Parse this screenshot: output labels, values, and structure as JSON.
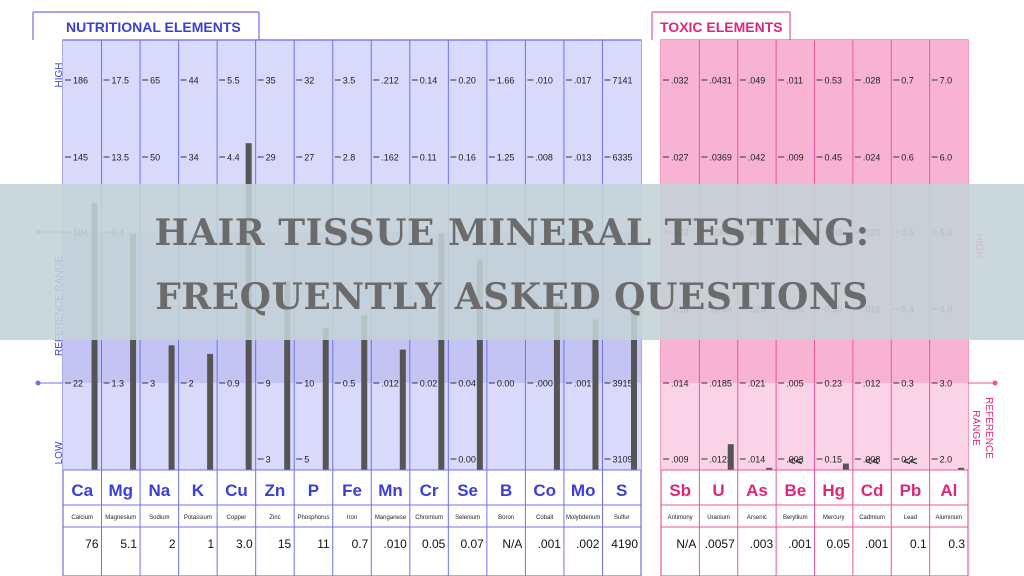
{
  "sections": {
    "nutritional": "NUTRITIONAL ELEMENTS",
    "toxic": "TOXIC ELEMENTS"
  },
  "side_labels": {
    "high": "HIGH",
    "low": "LOW",
    "reference_range": "REFERENCE RANGE",
    "toxic_high": "HIGH",
    "toxic_reference": "REFERENCE",
    "toxic_range": "RANGE"
  },
  "banner": {
    "line1": "HAIR TISSUE MINERAL TESTING:",
    "line2": "FREQUENTLY ASKED QUESTIONS"
  },
  "colors": {
    "nutritional_fill": "#d9d9fb",
    "nutritional_reference": "#c4c4f4",
    "nutritional_border": "#6f72e8",
    "nutritional_text": "#3a3fd6",
    "toxic_fill": "#fbd3e6",
    "toxic_high": "#f7b3d1",
    "toxic_border": "#e8579a",
    "toxic_text": "#e0267a",
    "bar": "#555555",
    "banner": "#c4d3d6",
    "banner_text": "#6b6b6b"
  },
  "chart_data": {
    "type": "bar",
    "nutritional": [
      {
        "symbol": "Ca",
        "name": "Calcium",
        "result": "76",
        "scale": [
          "186",
          "145",
          "104",
          "",
          "22",
          ""
        ],
        "bar": 0.62
      },
      {
        "symbol": "Mg",
        "name": "Magnesium",
        "result": "5.1",
        "scale": [
          "17.5",
          "13.5",
          "9.4",
          "",
          "1.3",
          ""
        ],
        "bar": 0.55
      },
      {
        "symbol": "Na",
        "name": "Sodium",
        "result": "2",
        "scale": [
          "65",
          "50",
          "",
          "",
          "3",
          ""
        ],
        "bar": 0.29
      },
      {
        "symbol": "K",
        "name": "Potassium",
        "result": "1",
        "scale": [
          "44",
          "34",
          "",
          "",
          "2",
          ""
        ],
        "bar": 0.27
      },
      {
        "symbol": "Cu",
        "name": "Copper",
        "result": "3.0",
        "scale": [
          "5.5",
          "4.4",
          "",
          "",
          "0.9",
          ""
        ],
        "bar": 0.76
      },
      {
        "symbol": "Zn",
        "name": "Zinc",
        "result": "15",
        "scale": [
          "35",
          "29",
          "",
          "",
          "9",
          "3"
        ],
        "bar": 0.44
      },
      {
        "symbol": "P",
        "name": "Phosphorus",
        "result": "11",
        "scale": [
          "32",
          "27",
          "",
          "",
          "10",
          "5"
        ],
        "bar": 0.33
      },
      {
        "symbol": "Fe",
        "name": "Iron",
        "result": "0.7",
        "scale": [
          "3.5",
          "2.8",
          "",
          "",
          "0.5",
          ""
        ],
        "bar": 0.36
      },
      {
        "symbol": "Mn",
        "name": "Manganese",
        "result": ".010",
        "scale": [
          ".212",
          ".162",
          "",
          "",
          ".012",
          ""
        ],
        "bar": 0.28
      },
      {
        "symbol": "Cr",
        "name": "Chromium",
        "result": "0.05",
        "scale": [
          "0.14",
          "0.11",
          "",
          "",
          "0.02",
          ""
        ],
        "bar": 0.55
      },
      {
        "symbol": "Se",
        "name": "Selenium",
        "result": "0.07",
        "scale": [
          "0.20",
          "0.16",
          "",
          "",
          "0.04",
          "0.00"
        ],
        "bar": 0.49
      },
      {
        "symbol": "B",
        "name": "Boron",
        "result": "N/A",
        "scale": [
          "1.66",
          "1.25",
          "",
          "",
          "0.00",
          ""
        ],
        "bar": 0
      },
      {
        "symbol": "Co",
        "name": "Cobalt",
        "result": ".001",
        "scale": [
          ".010",
          ".008",
          "",
          "",
          ".000",
          ""
        ],
        "bar": 0.39
      },
      {
        "symbol": "Mo",
        "name": "Molybdenum",
        "result": ".002",
        "scale": [
          ".017",
          ".013",
          "",
          "",
          ".001",
          ""
        ],
        "bar": 0.35
      },
      {
        "symbol": "S",
        "name": "Sulfur",
        "result": "4190",
        "scale": [
          "7141",
          "6335",
          "",
          "",
          "3915",
          "3109"
        ],
        "bar": 0.38
      }
    ],
    "toxic": [
      {
        "symbol": "Sb",
        "name": "Antimony",
        "result": "N/A",
        "scale": [
          ".032",
          ".027",
          ".023",
          ".018",
          ".014",
          ".009"
        ],
        "bar": 0,
        "marker": ""
      },
      {
        "symbol": "U",
        "name": "Uranium",
        "result": ".0057",
        "scale": [
          ".0431",
          ".0369",
          ".0308",
          ".0246",
          ".0185",
          ".0123"
        ],
        "bar": 0.06,
        "marker": ""
      },
      {
        "symbol": "As",
        "name": "Arsenic",
        "result": ".003",
        "scale": [
          ".049",
          ".042",
          ".035",
          ".028",
          ".021",
          ".014"
        ],
        "bar": 0.005,
        "marker": ""
      },
      {
        "symbol": "Be",
        "name": "Beryllium",
        "result": ".001",
        "scale": [
          ".011",
          ".009",
          ".008",
          ".006",
          ".005",
          ".003"
        ],
        "bar": 0,
        "marker": "<<"
      },
      {
        "symbol": "Hg",
        "name": "Mercury",
        "result": "0.05",
        "scale": [
          "0.53",
          "0.45",
          "0.38",
          "0.30",
          "0.23",
          "0.15"
        ],
        "bar": 0.015,
        "marker": ""
      },
      {
        "symbol": "Cd",
        "name": "Cadmium",
        "result": ".001",
        "scale": [
          ".028",
          ".024",
          ".020",
          ".016",
          ".012",
          ".008"
        ],
        "bar": 0,
        "marker": "<<"
      },
      {
        "symbol": "Pb",
        "name": "Lead",
        "result": "0.1",
        "scale": [
          "0.7",
          "0.6",
          "0.5",
          "0.4",
          "0.3",
          "0.2"
        ],
        "bar": 0,
        "marker": "<<"
      },
      {
        "symbol": "Al",
        "name": "Aluminum",
        "result": "0.3",
        "scale": [
          "7.0",
          "6.0",
          "5.0",
          "4.0",
          "3.0",
          "2.0"
        ],
        "bar": 0.005,
        "marker": ""
      }
    ]
  }
}
